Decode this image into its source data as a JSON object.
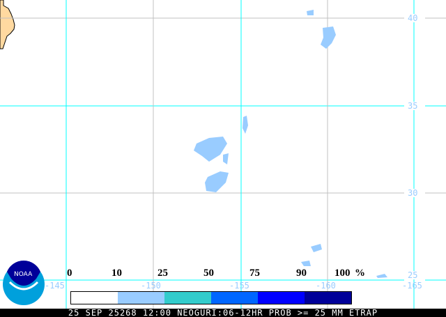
{
  "footer_text": "25 SEP 25268 12:00 NEOGURI:06-12HR PROB >= 25 MM ETRAP",
  "logo_text": "NOAA",
  "longitude_labels": [
    "-145",
    "-150",
    "-155",
    "-160",
    "-165"
  ],
  "latitude_labels": [
    "40",
    "35",
    "30",
    "25"
  ],
  "legend": {
    "ticks": [
      "0",
      "10",
      "25",
      "50",
      "75",
      "90",
      "100"
    ],
    "unit": "%",
    "colors": [
      "#ffffff",
      "#99ccff",
      "#33cccc",
      "#0066ff",
      "#0000ff",
      "#000099"
    ]
  },
  "colors": {
    "grid": "#00ffff",
    "grid_minor": "#c0c0c0",
    "land": "#ffd9a0",
    "precip": "#99ccff"
  }
}
